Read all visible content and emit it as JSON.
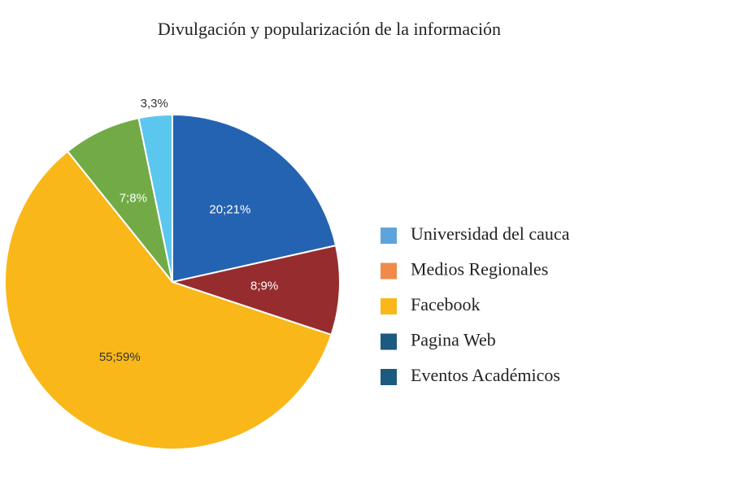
{
  "chart_data": {
    "type": "pie",
    "title": "Divulgación y popularización de la información",
    "values": [
      20,
      8,
      55,
      7,
      3
    ],
    "value_labels": [
      "20;21%",
      "8;9%",
      "55;59%",
      "7;8%",
      "3,3%"
    ],
    "colors": [
      "#2463b1",
      "#962c2e",
      "#f9b71a",
      "#72ab46",
      "#5bc7ef"
    ],
    "legend": [
      {
        "name": "Universidad del cauca",
        "color": "#5ea4dc"
      },
      {
        "name": "Medios Regionales",
        "color": "#ef8a4a"
      },
      {
        "name": "Facebook",
        "color": "#f9b71a"
      },
      {
        "name": "Pagina Web",
        "color": "#1c5a80"
      },
      {
        "name": "Eventos Académicos",
        "color": "#1c5a80"
      }
    ]
  }
}
